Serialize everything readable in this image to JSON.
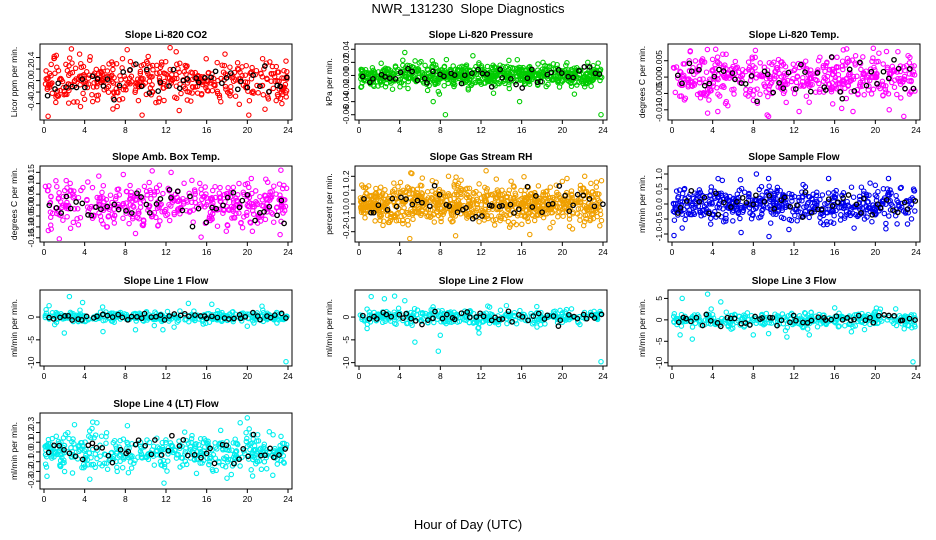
{
  "figure": {
    "title": "NWR_131230  Slope Diagnostics",
    "xlabel": "Hour of Day (UTC)"
  },
  "chart_data": [
    {
      "type": "scatter",
      "title": "Slope Li-820 CO2",
      "ylabel": "Licor ppm per min.",
      "color": "#ff0000",
      "xlim": [
        0,
        24
      ],
      "xticks": [
        0,
        4,
        8,
        12,
        16,
        20,
        24
      ],
      "ylim": [
        -0.65,
        0.6
      ],
      "yticks": [
        -0.4,
        -0.2,
        0.0,
        0.2,
        0.4
      ],
      "ytick_labels": [
        "-0.4",
        "-0.2",
        "0.0",
        "0.2",
        "0.4"
      ],
      "n_points": 420,
      "spread": 0.18,
      "n_black": 45,
      "black_spread": 0.12,
      "outliers": [
        [
          1.0,
          0.42
        ],
        [
          3.5,
          0.46
        ],
        [
          7.2,
          -0.45
        ],
        [
          8.5,
          0.33
        ],
        [
          12.4,
          0.57
        ],
        [
          13.3,
          -0.52
        ],
        [
          17.8,
          0.46
        ],
        [
          20.2,
          -0.35
        ],
        [
          21.5,
          0.38
        ],
        [
          23.4,
          -0.4
        ],
        [
          0.4,
          -0.62
        ],
        [
          13.0,
          0.5
        ]
      ]
    },
    {
      "type": "scatter",
      "title": "Slope Li-820 Pressure",
      "ylabel": "kPa per min.",
      "color": "#00cc00",
      "xlim": [
        0,
        24
      ],
      "xticks": [
        0,
        4,
        8,
        12,
        16,
        20,
        24
      ],
      "ylim": [
        -0.065,
        0.045
      ],
      "yticks": [
        -0.06,
        -0.04,
        -0.02,
        0.0,
        0.02,
        0.04
      ],
      "ytick_labels": [
        "-0.06",
        "-0.04",
        "-0.02",
        "0.00",
        "0.02",
        "0.04"
      ],
      "n_points": 700,
      "spread": 0.009,
      "n_black": 45,
      "black_spread": 0.008,
      "outliers": [
        [
          4.5,
          0.035
        ],
        [
          7.3,
          -0.04
        ],
        [
          8.5,
          -0.06
        ],
        [
          11.2,
          0.03
        ],
        [
          15.8,
          -0.04
        ],
        [
          23.8,
          -0.06
        ],
        [
          0.2,
          -0.018
        ],
        [
          22.5,
          0.02
        ]
      ]
    },
    {
      "type": "scatter",
      "title": "Slope Li-820 Temp.",
      "ylabel": "degrees C per min.",
      "color": "#ff00ff",
      "xlim": [
        0,
        24
      ],
      "xticks": [
        0,
        4,
        8,
        12,
        16,
        20,
        24
      ],
      "ylim": [
        -0.0125,
        0.0095
      ],
      "yticks": [
        -0.01,
        -0.005,
        0.0,
        0.005
      ],
      "ytick_labels": [
        "-0.010",
        "-0.005",
        "0.000",
        "0.005"
      ],
      "n_points": 480,
      "spread": 0.0035,
      "n_black": 45,
      "black_spread": 0.003,
      "outliers": [
        [
          1.8,
          0.008
        ],
        [
          4.3,
          0.0085
        ],
        [
          5.0,
          0.007
        ],
        [
          19.8,
          0.0088
        ],
        [
          23.4,
          0.006
        ],
        [
          3.5,
          -0.011
        ],
        [
          4.5,
          -0.0105
        ],
        [
          9.5,
          -0.012
        ],
        [
          12.5,
          -0.0105
        ],
        [
          17.8,
          -0.0105
        ],
        [
          22.8,
          -0.012
        ]
      ]
    },
    {
      "type": "scatter",
      "title": "Slope Amb. Box Temp.",
      "ylabel": "degrees C per min.",
      "color": "#ff00ff",
      "xlim": [
        0,
        24
      ],
      "xticks": [
        0,
        4,
        8,
        12,
        16,
        20,
        24
      ],
      "ylim": [
        -0.16,
        0.17
      ],
      "yticks": [
        -0.15,
        -0.1,
        -0.05,
        0.0,
        0.05,
        0.1,
        0.15
      ],
      "ytick_labels": [
        "-0.15",
        "-0.10",
        "-0.05",
        "0.00",
        "0.05",
        "0.10",
        "0.15"
      ],
      "n_points": 430,
      "spread": 0.05,
      "n_black": 45,
      "black_spread": 0.04,
      "outliers": [
        [
          1.5,
          -0.155
        ],
        [
          7.8,
          0.14
        ],
        [
          12.5,
          0.15
        ],
        [
          23.3,
          0.16
        ],
        [
          9.0,
          -0.13
        ],
        [
          20.5,
          -0.12
        ]
      ]
    },
    {
      "type": "scatter",
      "title": "Slope Gas Stream RH",
      "ylabel": "percent per min.",
      "color": "#f0a000",
      "xlim": [
        0,
        24
      ],
      "xticks": [
        0,
        4,
        8,
        12,
        16,
        20,
        24
      ],
      "ylim": [
        -0.26,
        0.26
      ],
      "yticks": [
        -0.2,
        -0.1,
        0.0,
        0.1,
        0.2
      ],
      "ytick_labels": [
        "-0.2",
        "-0.1",
        "0.0",
        "0.1",
        "0.2"
      ],
      "n_points": 800,
      "spread": 0.07,
      "n_black": 45,
      "black_spread": 0.05,
      "outliers": [
        [
          5.2,
          0.22
        ],
        [
          8.8,
          0.2
        ],
        [
          12.5,
          0.24
        ],
        [
          13.5,
          0.18
        ],
        [
          22.2,
          0.2
        ],
        [
          5.0,
          -0.25
        ],
        [
          9.5,
          -0.23
        ],
        [
          16.8,
          -0.22
        ],
        [
          21.0,
          -0.18
        ]
      ]
    },
    {
      "type": "scatter",
      "title": "Slope Sample Flow",
      "ylabel": "ml/min per min.",
      "color": "#0000ee",
      "xlim": [
        0,
        24
      ],
      "xticks": [
        0,
        4,
        8,
        12,
        16,
        20,
        24
      ],
      "ylim": [
        -1.2,
        1.2
      ],
      "yticks": [
        -1.0,
        -0.5,
        0.0,
        0.5,
        1.0
      ],
      "ytick_labels": [
        "-1.0",
        "-0.5",
        "0.0",
        "0.5",
        "1.0"
      ],
      "n_points": 500,
      "spread": 0.3,
      "n_black": 45,
      "black_spread": 0.2,
      "outliers": [
        [
          0.2,
          -1.05
        ],
        [
          1.0,
          -0.8
        ],
        [
          6.8,
          -0.95
        ],
        [
          11.5,
          -0.85
        ],
        [
          8.3,
          1.0
        ],
        [
          9.5,
          0.85
        ],
        [
          15.4,
          0.85
        ],
        [
          21.3,
          0.85
        ]
      ]
    },
    {
      "type": "scatter",
      "title": "Slope Line 1 Flow",
      "ylabel": "ml/min per min.",
      "color": "#00eeee",
      "xlim": [
        0,
        24
      ],
      "xticks": [
        0,
        4,
        8,
        12,
        16,
        20,
        24
      ],
      "ylim": [
        -10.3,
        5.5
      ],
      "yticks": [
        -10,
        -5,
        0
      ],
      "ytick_labels": [
        "-10",
        "-5",
        "0"
      ],
      "n_points": 340,
      "spread": 0.6,
      "n_black": 50,
      "black_spread": 0.35,
      "outliers": [
        [
          2.5,
          4.5
        ],
        [
          3.8,
          3.2
        ],
        [
          0.5,
          2.5
        ],
        [
          2.0,
          -3.5
        ],
        [
          5.8,
          -3.2
        ],
        [
          9.0,
          -2.8
        ],
        [
          11.7,
          -2.8
        ],
        [
          12.8,
          -2.2
        ],
        [
          14.2,
          3.0
        ],
        [
          20.0,
          -2.0
        ],
        [
          23.8,
          -9.8
        ],
        [
          16.5,
          2.8
        ]
      ]
    },
    {
      "type": "scatter",
      "title": "Slope Line 2 Flow",
      "ylabel": "ml/min per min.",
      "color": "#00eeee",
      "xlim": [
        0,
        24
      ],
      "xticks": [
        0,
        4,
        8,
        12,
        16,
        20,
        24
      ],
      "ylim": [
        -10.3,
        5.5
      ],
      "yticks": [
        -10,
        -5,
        0
      ],
      "ytick_labels": [
        "-10",
        "-5",
        "0"
      ],
      "n_points": 340,
      "spread": 0.8,
      "n_black": 50,
      "black_spread": 0.6,
      "outliers": [
        [
          1.2,
          4.5
        ],
        [
          2.5,
          4.0
        ],
        [
          3.5,
          4.6
        ],
        [
          4.5,
          3.6
        ],
        [
          0.8,
          -2.5
        ],
        [
          5.5,
          -5.5
        ],
        [
          7.8,
          -7.5
        ],
        [
          8.0,
          -4.0
        ],
        [
          11.8,
          -3.5
        ],
        [
          23.8,
          -9.8
        ],
        [
          14.5,
          2.5
        ]
      ]
    },
    {
      "type": "scatter",
      "title": "Slope Line 3 Flow",
      "ylabel": "ml/min per min.",
      "color": "#00eeee",
      "xlim": [
        0,
        24
      ],
      "xticks": [
        0,
        4,
        8,
        12,
        16,
        20,
        24
      ],
      "ylim": [
        -10.3,
        6.5
      ],
      "yticks": [
        -10,
        -5,
        0,
        5
      ],
      "ytick_labels": [
        "-10",
        "-5",
        "0",
        "5"
      ],
      "n_points": 340,
      "spread": 0.9,
      "n_black": 50,
      "black_spread": 0.8,
      "outliers": [
        [
          1.0,
          5.0
        ],
        [
          3.5,
          6.0
        ],
        [
          4.8,
          4.2
        ],
        [
          0.8,
          -3.5
        ],
        [
          2.0,
          -4.5
        ],
        [
          8.0,
          -3.5
        ],
        [
          9.5,
          -3.2
        ],
        [
          11.3,
          -4.0
        ],
        [
          13.5,
          -3.5
        ],
        [
          23.7,
          -9.8
        ],
        [
          16.0,
          2.8
        ],
        [
          20.5,
          2.5
        ]
      ]
    },
    {
      "type": "scatter",
      "title": "Slope Line 4 (LT) Flow",
      "ylabel": "ml/min per min.",
      "color": "#00eeee",
      "xlim": [
        0,
        24
      ],
      "xticks": [
        0,
        4,
        8,
        12,
        16,
        20,
        24
      ],
      "ylim": [
        -0.36,
        0.38
      ],
      "yticks": [
        -0.3,
        -0.2,
        -0.1,
        0.0,
        0.1,
        0.2,
        0.3
      ],
      "ytick_labels": [
        "-0.3",
        "-0.2",
        "-0.1",
        "0.0",
        "0.1",
        "0.2",
        "0.3"
      ],
      "n_points": 430,
      "spread": 0.09,
      "n_black": 45,
      "black_spread": 0.08,
      "outliers": [
        [
          3.0,
          0.28
        ],
        [
          5.2,
          0.3
        ],
        [
          8.2,
          0.27
        ],
        [
          20.0,
          0.35
        ],
        [
          19.3,
          0.3
        ],
        [
          0.3,
          -0.25
        ],
        [
          4.5,
          -0.28
        ],
        [
          7.2,
          -0.2
        ],
        [
          11.8,
          -0.32
        ],
        [
          15.0,
          -0.22
        ],
        [
          18.0,
          -0.27
        ],
        [
          22.5,
          -0.24
        ]
      ]
    }
  ]
}
